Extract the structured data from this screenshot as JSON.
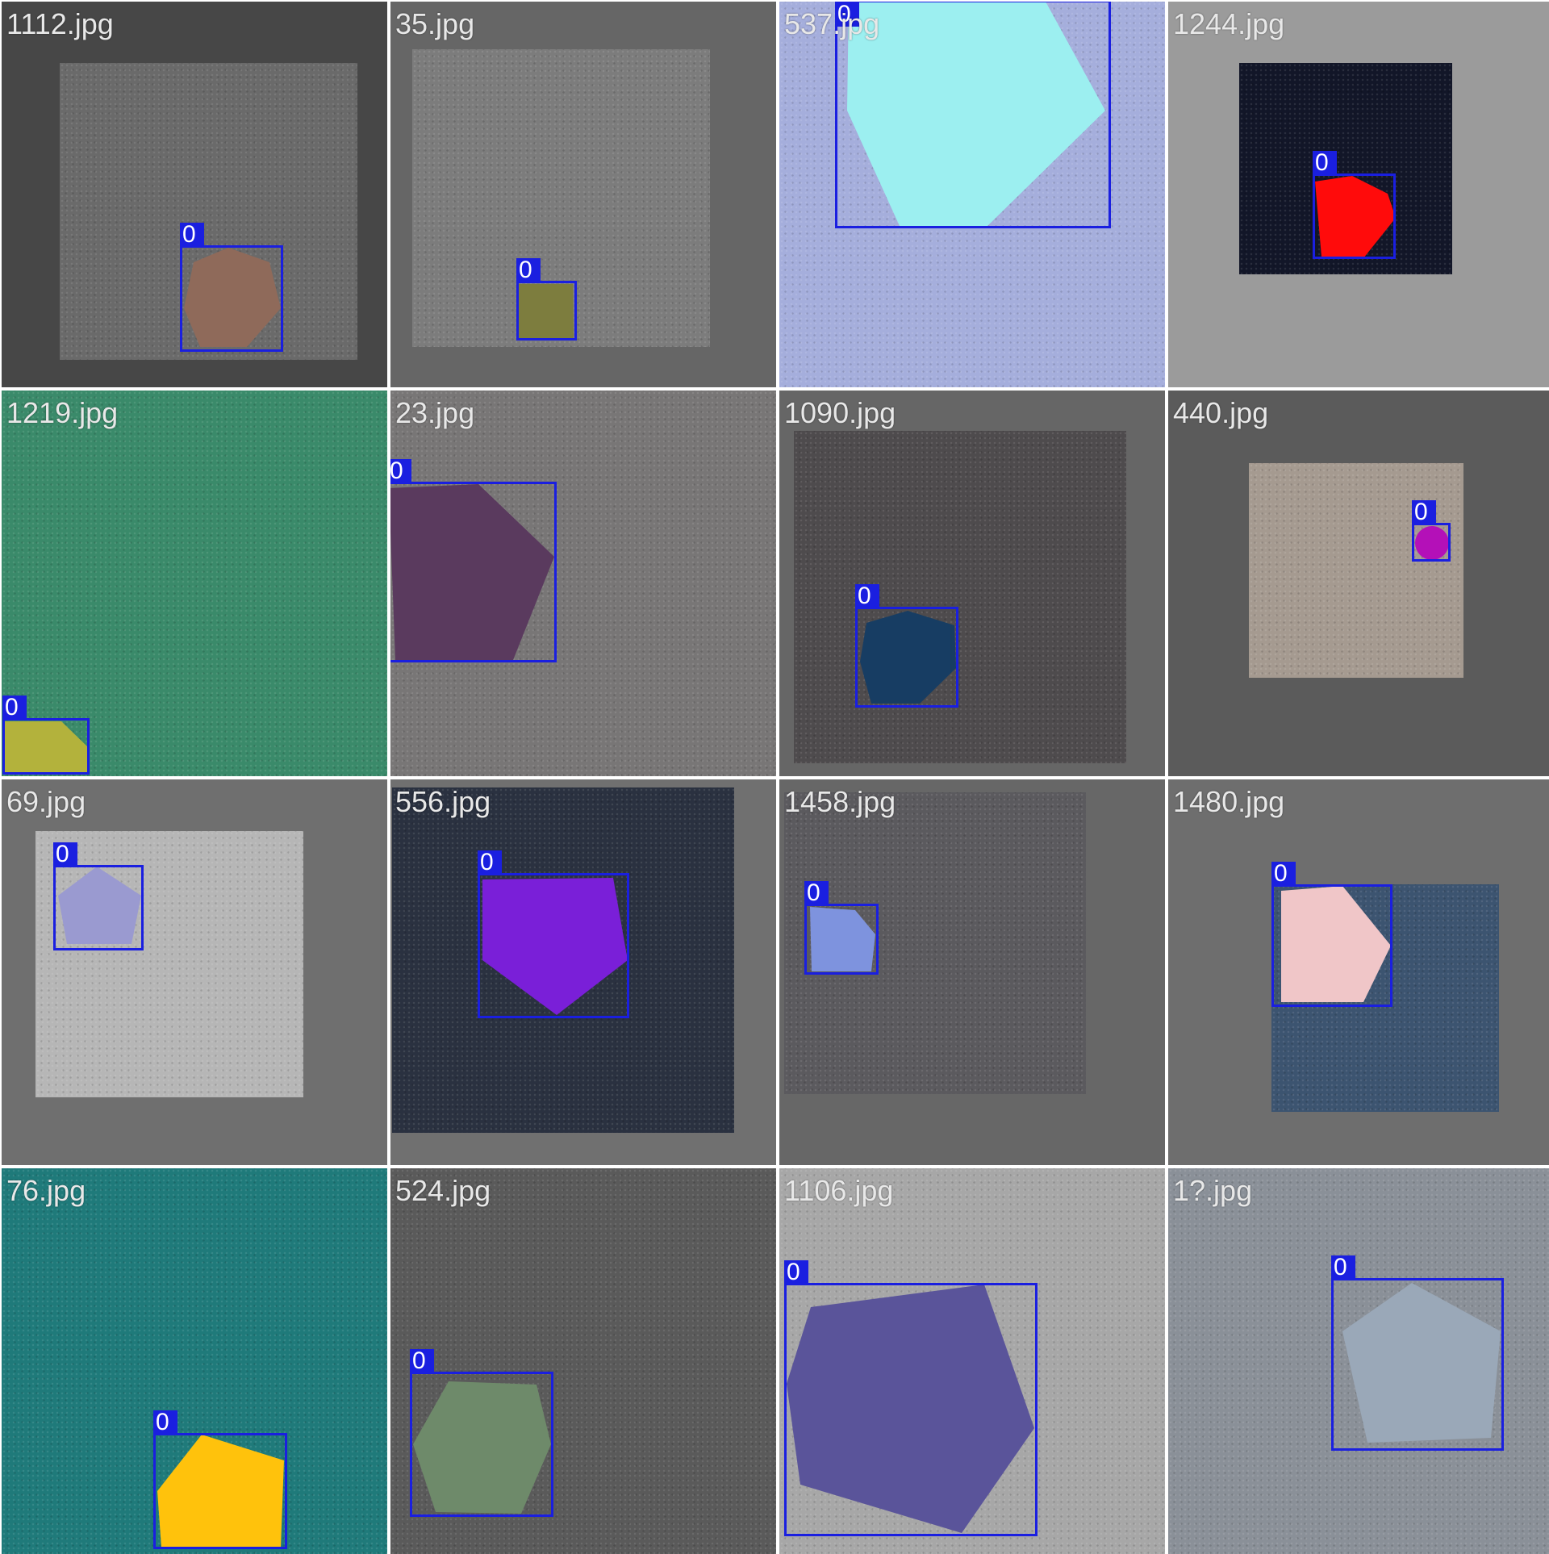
{
  "tiles": [
    {
      "filename": "1112.jpg",
      "class_label": "0",
      "background": "#474747",
      "texture": "#6a6a6a",
      "shape_color": "#8f6a5a",
      "shape_kind": "hexagon"
    },
    {
      "filename": "35.jpg",
      "class_label": "0",
      "background": "#666666",
      "texture": "#7c7c7c",
      "shape_color": "#7d7d3e",
      "shape_kind": "square"
    },
    {
      "filename": "537.jpg",
      "class_label": "0",
      "background": "#9ea6d8",
      "texture": "#a5aedc",
      "shape_color": "#9ceff0",
      "shape_kind": "pentagon"
    },
    {
      "filename": "1244.jpg",
      "class_label": "0",
      "background": "#9b9b9b",
      "texture": "#121628",
      "shape_color": "#ff0b0b",
      "shape_kind": "pentagon"
    },
    {
      "filename": "1219.jpg",
      "class_label": "0",
      "background": "#3a8a6a",
      "texture": "#3a8a6a",
      "shape_color": "#b3b23c",
      "shape_kind": "pentagon"
    },
    {
      "filename": "23.jpg",
      "class_label": "0",
      "background": "#787676",
      "texture": "#787676",
      "shape_color": "#5a3a5e",
      "shape_kind": "pentagon"
    },
    {
      "filename": "1090.jpg",
      "class_label": "0",
      "background": "#666666",
      "texture": "#4e4b4d",
      "shape_color": "#173d63",
      "shape_kind": "pentagon"
    },
    {
      "filename": "440.jpg",
      "class_label": "0",
      "background": "#5b5b5b",
      "texture": "#a59a90",
      "shape_color": "#b410b8",
      "shape_kind": "circle"
    },
    {
      "filename": "69.jpg",
      "class_label": "0",
      "background": "#6f6f6f",
      "texture": "#b6b6b6",
      "shape_color": "#9a9ad0",
      "shape_kind": "pentagon"
    },
    {
      "filename": "556.jpg",
      "class_label": "0",
      "background": "#707070",
      "texture": "#2a3140",
      "shape_color": "#7a1fd8",
      "shape_kind": "pentagon"
    },
    {
      "filename": "1458.jpg",
      "class_label": "0",
      "background": "#676767",
      "texture": "#5b5a5e",
      "shape_color": "#7e93de",
      "shape_kind": "pentagon"
    },
    {
      "filename": "1480.jpg",
      "class_label": "0",
      "background": "#6e6e6e",
      "texture": "#3c5470",
      "shape_color": "#f0c6c8",
      "shape_kind": "pentagon"
    },
    {
      "filename": "76.jpg",
      "class_label": "0",
      "background": "#1f7a7a",
      "texture": "#1f7a7a",
      "shape_color": "#ffc20c",
      "shape_kind": "pentagon"
    },
    {
      "filename": "524.jpg",
      "class_label": "0",
      "background": "#5a5a5a",
      "texture": "#5a5a5a",
      "shape_color": "#6e8a6a",
      "shape_kind": "hexagon"
    },
    {
      "filename": "1106.jpg",
      "class_label": "0",
      "background": "#a7a7a7",
      "texture": "#a7a7a7",
      "shape_color": "#5a549a",
      "shape_kind": "pentagon"
    },
    {
      "filename": "1?.jpg",
      "class_label": "0",
      "background": "#8a9098",
      "texture": "#8a9098",
      "shape_color": "#9aa8b8",
      "shape_kind": "pentagon"
    }
  ]
}
